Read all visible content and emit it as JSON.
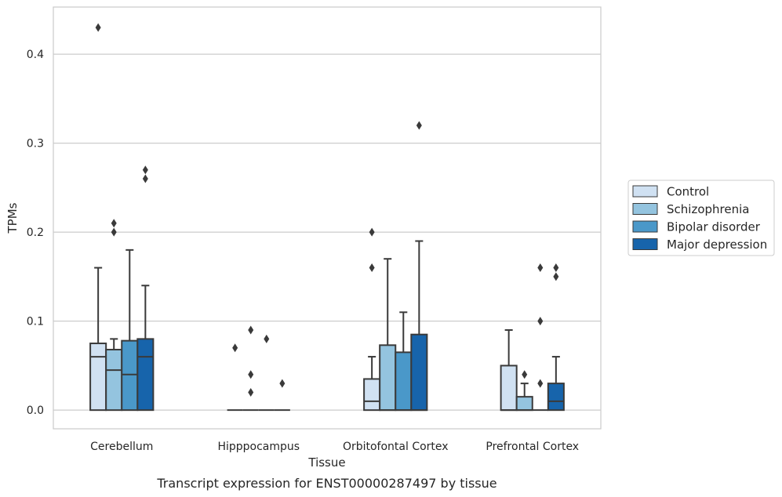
{
  "caption": "Transcript expression for ENST00000287497 by tissue",
  "chart_data": {
    "type": "box",
    "xlabel": "Tissue",
    "ylabel": "TPMs",
    "ylim": [
      -0.021,
      0.453
    ],
    "yticks": [
      0.0,
      0.1,
      0.2,
      0.3,
      0.4
    ],
    "ytick_labels": [
      "0.0",
      "0.1",
      "0.2",
      "0.3",
      "0.4"
    ],
    "grid": "horizontal",
    "legend_position": "right",
    "categories": [
      "Cerebellum",
      "Hipppocampus",
      "Orbitofontal Cortex",
      "Prefrontal Cortex"
    ],
    "series": [
      {
        "name": "Control",
        "color": "#d0e1f2",
        "boxes": [
          {
            "q1": 0.0,
            "median": 0.06,
            "q3": 0.075,
            "whisker_low": 0.0,
            "whisker_high": 0.16,
            "outliers": [
              0.43
            ]
          },
          {
            "q1": 0.0,
            "median": 0.0,
            "q3": 0.0,
            "whisker_low": 0.0,
            "whisker_high": 0.0,
            "outliers": [
              0.07
            ]
          },
          {
            "q1": 0.0,
            "median": 0.01,
            "q3": 0.035,
            "whisker_low": 0.0,
            "whisker_high": 0.06,
            "outliers": [
              0.16,
              0.2
            ]
          },
          {
            "q1": 0.0,
            "median": 0.0,
            "q3": 0.05,
            "whisker_low": 0.0,
            "whisker_high": 0.09,
            "outliers": []
          }
        ]
      },
      {
        "name": "Schizophrenia",
        "color": "#94c4df",
        "boxes": [
          {
            "q1": 0.0,
            "median": 0.045,
            "q3": 0.068,
            "whisker_low": 0.0,
            "whisker_high": 0.08,
            "outliers": [
              0.2,
              0.21
            ]
          },
          {
            "q1": 0.0,
            "median": 0.0,
            "q3": 0.0,
            "whisker_low": 0.0,
            "whisker_high": 0.0,
            "outliers": [
              0.02,
              0.04,
              0.09
            ]
          },
          {
            "q1": 0.0,
            "median": 0.0,
            "q3": 0.073,
            "whisker_low": 0.0,
            "whisker_high": 0.17,
            "outliers": []
          },
          {
            "q1": 0.0,
            "median": 0.0,
            "q3": 0.015,
            "whisker_low": 0.0,
            "whisker_high": 0.03,
            "outliers": [
              0.04
            ]
          }
        ]
      },
      {
        "name": "Bipolar disorder",
        "color": "#4a98c9",
        "boxes": [
          {
            "q1": 0.0,
            "median": 0.04,
            "q3": 0.078,
            "whisker_low": 0.0,
            "whisker_high": 0.18,
            "outliers": []
          },
          {
            "q1": 0.0,
            "median": 0.0,
            "q3": 0.0,
            "whisker_low": 0.0,
            "whisker_high": 0.0,
            "outliers": [
              0.08
            ]
          },
          {
            "q1": 0.0,
            "median": 0.0,
            "q3": 0.065,
            "whisker_low": 0.0,
            "whisker_high": 0.11,
            "outliers": []
          },
          {
            "q1": 0.0,
            "median": 0.0,
            "q3": 0.0,
            "whisker_low": 0.0,
            "whisker_high": 0.0,
            "outliers": [
              0.03,
              0.1,
              0.16
            ]
          }
        ]
      },
      {
        "name": "Major depression",
        "color": "#1764ab",
        "boxes": [
          {
            "q1": 0.0,
            "median": 0.06,
            "q3": 0.08,
            "whisker_low": 0.0,
            "whisker_high": 0.14,
            "outliers": [
              0.26,
              0.27
            ]
          },
          {
            "q1": 0.0,
            "median": 0.0,
            "q3": 0.0,
            "whisker_low": 0.0,
            "whisker_high": 0.0,
            "outliers": [
              0.03
            ]
          },
          {
            "q1": 0.0,
            "median": 0.0,
            "q3": 0.085,
            "whisker_low": 0.0,
            "whisker_high": 0.19,
            "outliers": [
              0.32
            ]
          },
          {
            "q1": 0.0,
            "median": 0.01,
            "q3": 0.03,
            "whisker_low": 0.0,
            "whisker_high": 0.06,
            "outliers": [
              0.15,
              0.16
            ]
          }
        ]
      }
    ]
  },
  "colors": {
    "grid": "#cccccc",
    "frame": "#cccccc",
    "line": "#3a3a3a",
    "text": "#262626"
  }
}
